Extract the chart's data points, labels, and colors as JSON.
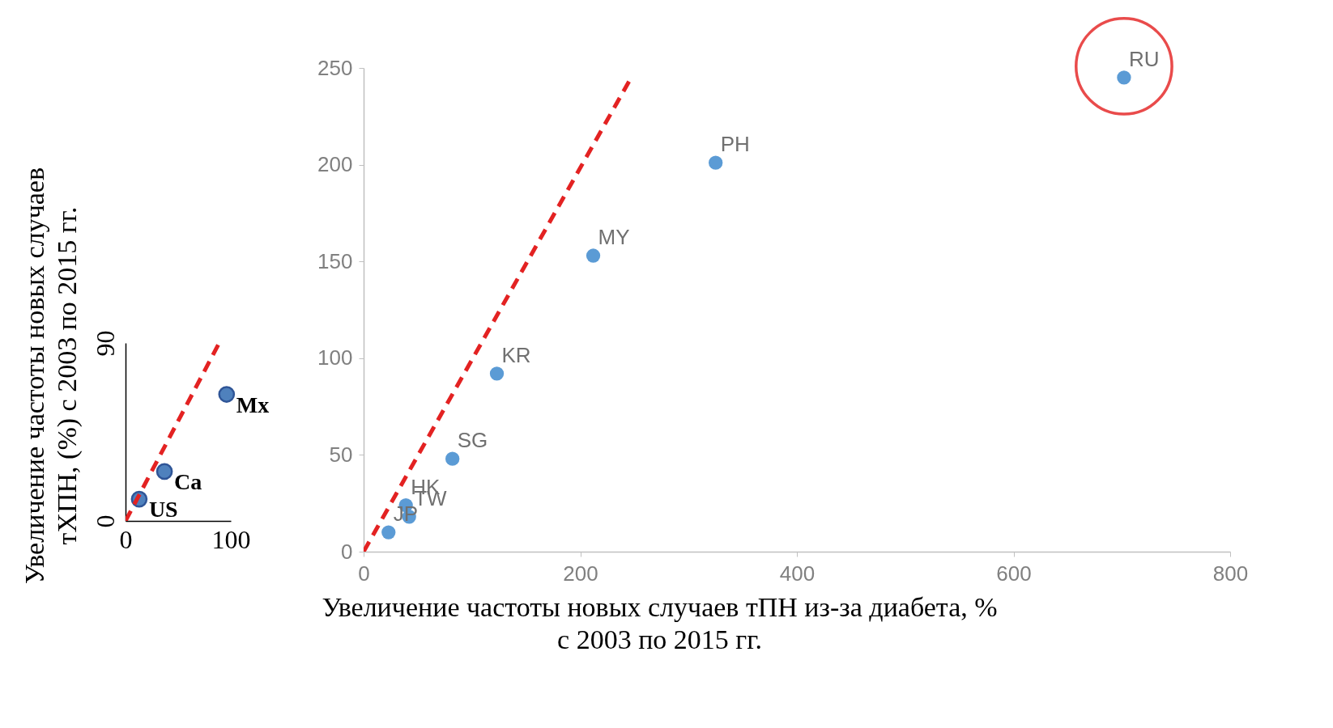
{
  "chart_data": [
    {
      "type": "scatter",
      "ylabel": "Увеличение частоты новых случаев\nтХПН, (%)  с 2003 по 2015 гг.",
      "xlim": [
        0,
        100
      ],
      "ylim": [
        0,
        90
      ],
      "xticks": [
        0,
        100
      ],
      "yticks": [
        0,
        90
      ],
      "series": [
        {
          "marker": "circle",
          "color": "#4f81bd",
          "x": [
            13,
            37,
            96
          ],
          "values": [
            11,
            25,
            64
          ]
        },
        {
          "type": "line",
          "marker": "none",
          "color": "#e32222",
          "line_style": "dashed",
          "x": [
            0,
            88
          ],
          "values": [
            0,
            89
          ]
        }
      ],
      "annotations": [
        {
          "text": "US",
          "x": 13,
          "y": 11
        },
        {
          "text": "Ca",
          "x": 37,
          "y": 25
        },
        {
          "text": "Mx",
          "x": 96,
          "y": 64
        }
      ]
    },
    {
      "type": "scatter",
      "xlabel": "Увеличение частоты новых случаев   тПН из-за диабета, %\nс 2003 по 2015 гг.",
      "xlim": [
        0,
        800
      ],
      "ylim": [
        0,
        250
      ],
      "xticks": [
        0,
        200,
        400,
        600,
        800
      ],
      "yticks": [
        0,
        50,
        100,
        150,
        200,
        250
      ],
      "series": [
        {
          "marker": "circle",
          "color": "#5b9bd5",
          "x": [
            702,
            325,
            212,
            123,
            82,
            39,
            42,
            23
          ],
          "values": [
            245,
            201,
            153,
            92,
            48,
            24,
            18,
            10
          ]
        },
        {
          "type": "line",
          "marker": "none",
          "color": "#e32222",
          "line_style": "dashed",
          "x": [
            0,
            245
          ],
          "values": [
            0,
            243
          ]
        }
      ],
      "annotations": [
        {
          "text": "RU",
          "x": 702,
          "y": 245
        },
        {
          "text": "PH",
          "x": 325,
          "y": 201
        },
        {
          "text": "MY",
          "x": 212,
          "y": 153
        },
        {
          "text": "KR",
          "x": 123,
          "y": 92
        },
        {
          "text": "SG",
          "x": 82,
          "y": 48
        },
        {
          "text": "HK",
          "x": 39,
          "y": 24
        },
        {
          "text": "TW",
          "x": 42,
          "y": 18
        },
        {
          "text": "JP",
          "x": 23,
          "y": 10
        }
      ]
    }
  ]
}
